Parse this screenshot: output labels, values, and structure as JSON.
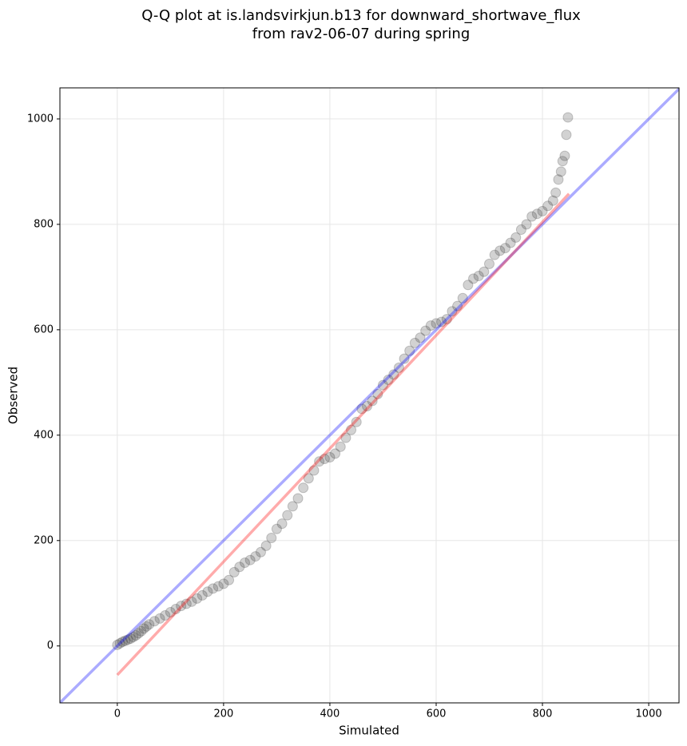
{
  "chart_data": {
    "type": "scatter",
    "title": [
      "Q-Q plot at is.landsvirkjun.b13 for downward_shortwave_flux",
      "from rav2-06-07 during spring"
    ],
    "xlabel": "Simulated",
    "ylabel": "Observed",
    "xlim": [
      -108,
      1057
    ],
    "ylim": [
      -108,
      1059
    ],
    "xticks": [
      0,
      200,
      400,
      600,
      800,
      1000
    ],
    "yticks": [
      0,
      200,
      400,
      600,
      800,
      1000
    ],
    "grid": true,
    "color": "#333333",
    "x": [
      0,
      5,
      10,
      15,
      20,
      25,
      30,
      35,
      40,
      45,
      50,
      55,
      60,
      70,
      80,
      90,
      100,
      110,
      120,
      130,
      140,
      150,
      160,
      170,
      180,
      190,
      200,
      210,
      220,
      230,
      240,
      250,
      260,
      270,
      280,
      290,
      300,
      310,
      320,
      330,
      340,
      350,
      360,
      370,
      380,
      390,
      400,
      410,
      420,
      430,
      440,
      450,
      460,
      470,
      480,
      490,
      500,
      510,
      520,
      530,
      540,
      550,
      560,
      570,
      580,
      590,
      600,
      610,
      620,
      630,
      640,
      650,
      660,
      670,
      680,
      690,
      700,
      710,
      720,
      730,
      740,
      750,
      760,
      770,
      780,
      790,
      800,
      810,
      820,
      825,
      830,
      835,
      838,
      842,
      845,
      848
    ],
    "values": [
      2,
      5,
      8,
      10,
      12,
      14,
      17,
      20,
      24,
      28,
      33,
      37,
      41,
      47,
      52,
      58,
      64,
      70,
      76,
      80,
      84,
      90,
      96,
      103,
      109,
      113,
      118,
      125,
      140,
      150,
      158,
      163,
      170,
      178,
      190,
      205,
      222,
      232,
      248,
      265,
      280,
      300,
      318,
      333,
      350,
      355,
      358,
      365,
      378,
      395,
      410,
      425,
      450,
      455,
      465,
      478,
      495,
      505,
      515,
      528,
      545,
      560,
      575,
      585,
      598,
      608,
      612,
      615,
      620,
      635,
      645,
      660,
      685,
      697,
      702,
      710,
      725,
      742,
      750,
      755,
      765,
      775,
      790,
      800,
      815,
      820,
      825,
      835,
      845,
      860,
      885,
      900,
      920,
      930,
      970,
      1003
    ],
    "lines": [
      {
        "color": "#0000ff",
        "x": [
          -108,
          1057
        ],
        "values": [
          -108,
          1057
        ]
      },
      {
        "color": "#ff0000",
        "x": [
          0,
          850
        ],
        "values": [
          -55,
          858
        ]
      }
    ]
  }
}
